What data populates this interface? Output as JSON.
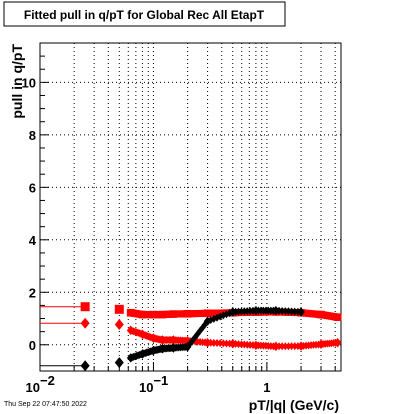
{
  "chart_data": {
    "type": "scatter",
    "title": "Fitted pull in q/pT for Global Rec All EtapT",
    "xlabel": "pT/|q| (GeV/c)",
    "ylabel": "pull in q/pT",
    "x_scale": "log",
    "xlim": [
      0.01,
      4.5
    ],
    "ylim": [
      -1,
      11.5
    ],
    "grid": true,
    "x_tick_labels": [
      {
        "value": 0.01,
        "label": "10",
        "exponent": "−2"
      },
      {
        "value": 0.1,
        "label": "10",
        "exponent": "−1"
      },
      {
        "value": 1,
        "label": "1",
        "exponent": ""
      }
    ],
    "y_ticks": [
      0,
      2,
      4,
      6,
      8,
      10
    ],
    "series": [
      {
        "marker": "square",
        "color": "#ff0000",
        "points": [
          {
            "x": 0.025,
            "y": 1.45
          },
          {
            "x": 0.05,
            "y": 1.35
          },
          {
            "x": 0.063,
            "y": 1.22
          },
          {
            "x": 0.08,
            "y": 1.15
          },
          {
            "x": 0.1,
            "y": 1.15
          },
          {
            "x": 0.12,
            "y": 1.15
          },
          {
            "x": 0.15,
            "y": 1.17
          },
          {
            "x": 0.2,
            "y": 1.18
          },
          {
            "x": 0.3,
            "y": 1.2
          },
          {
            "x": 0.5,
            "y": 1.22
          },
          {
            "x": 0.8,
            "y": 1.24
          },
          {
            "x": 1.2,
            "y": 1.25
          },
          {
            "x": 2.0,
            "y": 1.22
          },
          {
            "x": 3.0,
            "y": 1.15
          },
          {
            "x": 4.2,
            "y": 1.05
          }
        ]
      },
      {
        "marker": "diamond",
        "color": "#ff0000",
        "points": [
          {
            "x": 0.025,
            "y": 0.82
          },
          {
            "x": 0.05,
            "y": 0.77
          },
          {
            "x": 0.063,
            "y": 0.55
          },
          {
            "x": 0.08,
            "y": 0.4
          },
          {
            "x": 0.1,
            "y": 0.25
          },
          {
            "x": 0.12,
            "y": 0.18
          },
          {
            "x": 0.15,
            "y": 0.18
          },
          {
            "x": 0.2,
            "y": 0.15
          },
          {
            "x": 0.3,
            "y": 0.08
          },
          {
            "x": 0.5,
            "y": 0.04
          },
          {
            "x": 0.8,
            "y": -0.02
          },
          {
            "x": 1.2,
            "y": -0.06
          },
          {
            "x": 2.0,
            "y": -0.05
          },
          {
            "x": 3.0,
            "y": 0.02
          },
          {
            "x": 4.2,
            "y": 0.08
          }
        ]
      },
      {
        "marker": "diamond",
        "color": "#000000",
        "points": [
          {
            "x": 0.025,
            "y": -0.8
          },
          {
            "x": 0.05,
            "y": -0.68
          },
          {
            "x": 0.063,
            "y": -0.5
          },
          {
            "x": 0.08,
            "y": -0.35
          },
          {
            "x": 0.1,
            "y": -0.22
          },
          {
            "x": 0.12,
            "y": -0.15
          },
          {
            "x": 0.15,
            "y": -0.12
          },
          {
            "x": 0.2,
            "y": -0.08
          },
          {
            "x": 0.3,
            "y": 0.9
          },
          {
            "x": 0.5,
            "y": 1.25
          },
          {
            "x": 0.8,
            "y": 1.3
          },
          {
            "x": 1.2,
            "y": 1.3
          },
          {
            "x": 2.0,
            "y": 1.25
          }
        ]
      }
    ]
  },
  "timestamp": "Thu Sep 22 07:47:50 2022"
}
